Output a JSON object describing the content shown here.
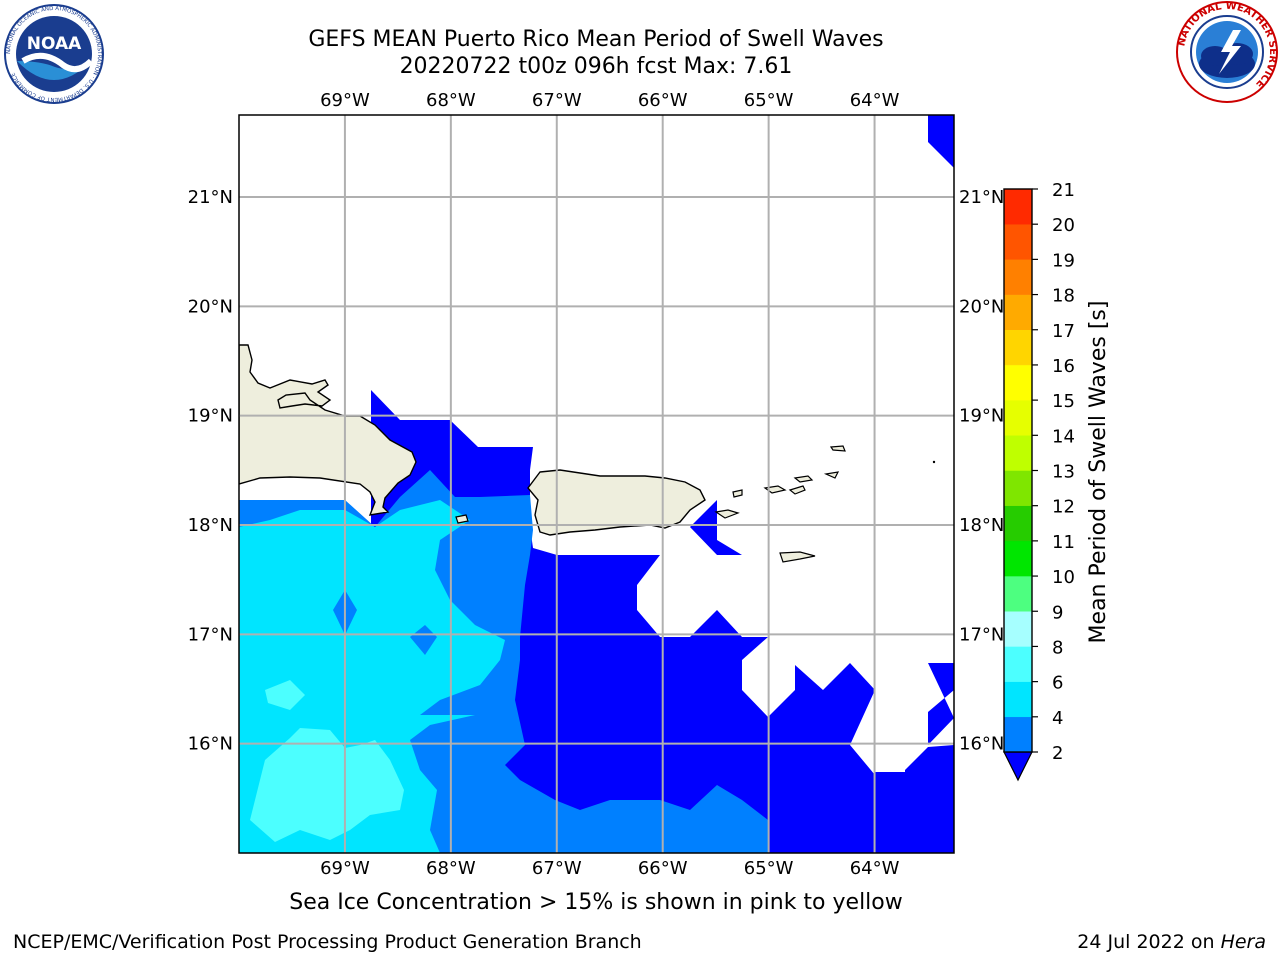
{
  "title": {
    "line1": "GEFS MEAN Puerto Rico Mean Period of Swell Waves",
    "line2": "20220722 t00z 096h fcst   Max: 7.61"
  },
  "map": {
    "lon_labels": [
      "69°W",
      "68°W",
      "67°W",
      "66°W",
      "65°W",
      "64°W"
    ],
    "lat_labels": [
      "21°N",
      "20°N",
      "19°N",
      "18°N",
      "17°N",
      "16°N"
    ],
    "lon_range": [
      -70.0,
      -63.25
    ],
    "lat_range": [
      15.0,
      21.75
    ],
    "grid": true
  },
  "colorbar": {
    "label": "Mean Period of Swell Waves [s]",
    "tick_labels": [
      "2",
      "4",
      "6",
      "8",
      "9",
      "10",
      "11",
      "12",
      "13",
      "14",
      "15",
      "16",
      "17",
      "18",
      "19",
      "20",
      "21"
    ],
    "colors": [
      "#0000ff",
      "#0080ff",
      "#00e5ff",
      "#4cffff",
      "#a6ffff",
      "#4dff80",
      "#00e600",
      "#26cc00",
      "#7fe600",
      "#bfff00",
      "#e6ff00",
      "#ffff00",
      "#ffd500",
      "#ffaa00",
      "#ff8000",
      "#ff5500",
      "#ff2a00",
      "#ff0000"
    ],
    "extend": "min"
  },
  "note": "Sea Ice Concentration > 15% is shown in pink to yellow",
  "footer": {
    "left": "NCEP/EMC/Verification Post Processing Product Generation Branch",
    "right_prefix": "24 Jul 2022 on ",
    "right_host": "Hera"
  },
  "logos": {
    "left": {
      "name": "noaa-logo",
      "text": "NOAA",
      "ring_text": "NATIONAL OCEANIC AND ATMOSPHERIC ADMINISTRATION · U.S. DEPARTMENT OF COMMERCE"
    },
    "right": {
      "name": "nws-logo",
      "ring_text": "NATIONAL WEATHER SERVICE"
    }
  },
  "colors": {
    "land": "#eeeedd",
    "grid": "#b0b0b0",
    "white": "#ffffff"
  }
}
